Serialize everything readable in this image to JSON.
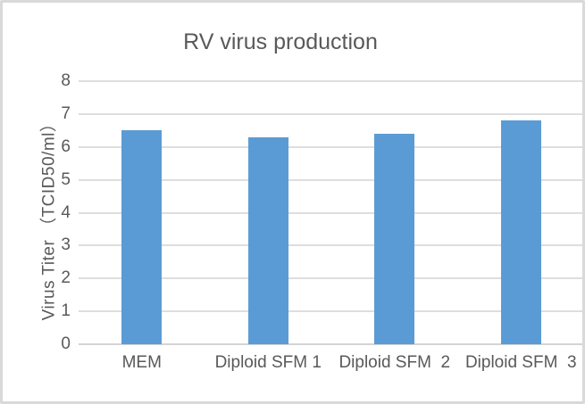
{
  "chart_data": {
    "type": "bar",
    "title": "RV virus production",
    "categories": [
      "MEM",
      "Diploid SFM 1",
      "Diploid SFM  2",
      "Diploid SFM  3"
    ],
    "values": [
      6.5,
      6.3,
      6.4,
      6.8
    ],
    "xlabel": "",
    "ylabel": "Virus Titer （TCID50/ml）",
    "ylim": [
      0,
      8
    ],
    "ytick_step": 1,
    "grid": true,
    "legend": false,
    "colors": {
      "bar": "#5B9BD5",
      "gridline": "#dedede",
      "axis_line": "#d4d4d4",
      "text": "#595959",
      "frame_border": "#d9d9d9",
      "background": "#ffffff"
    }
  }
}
